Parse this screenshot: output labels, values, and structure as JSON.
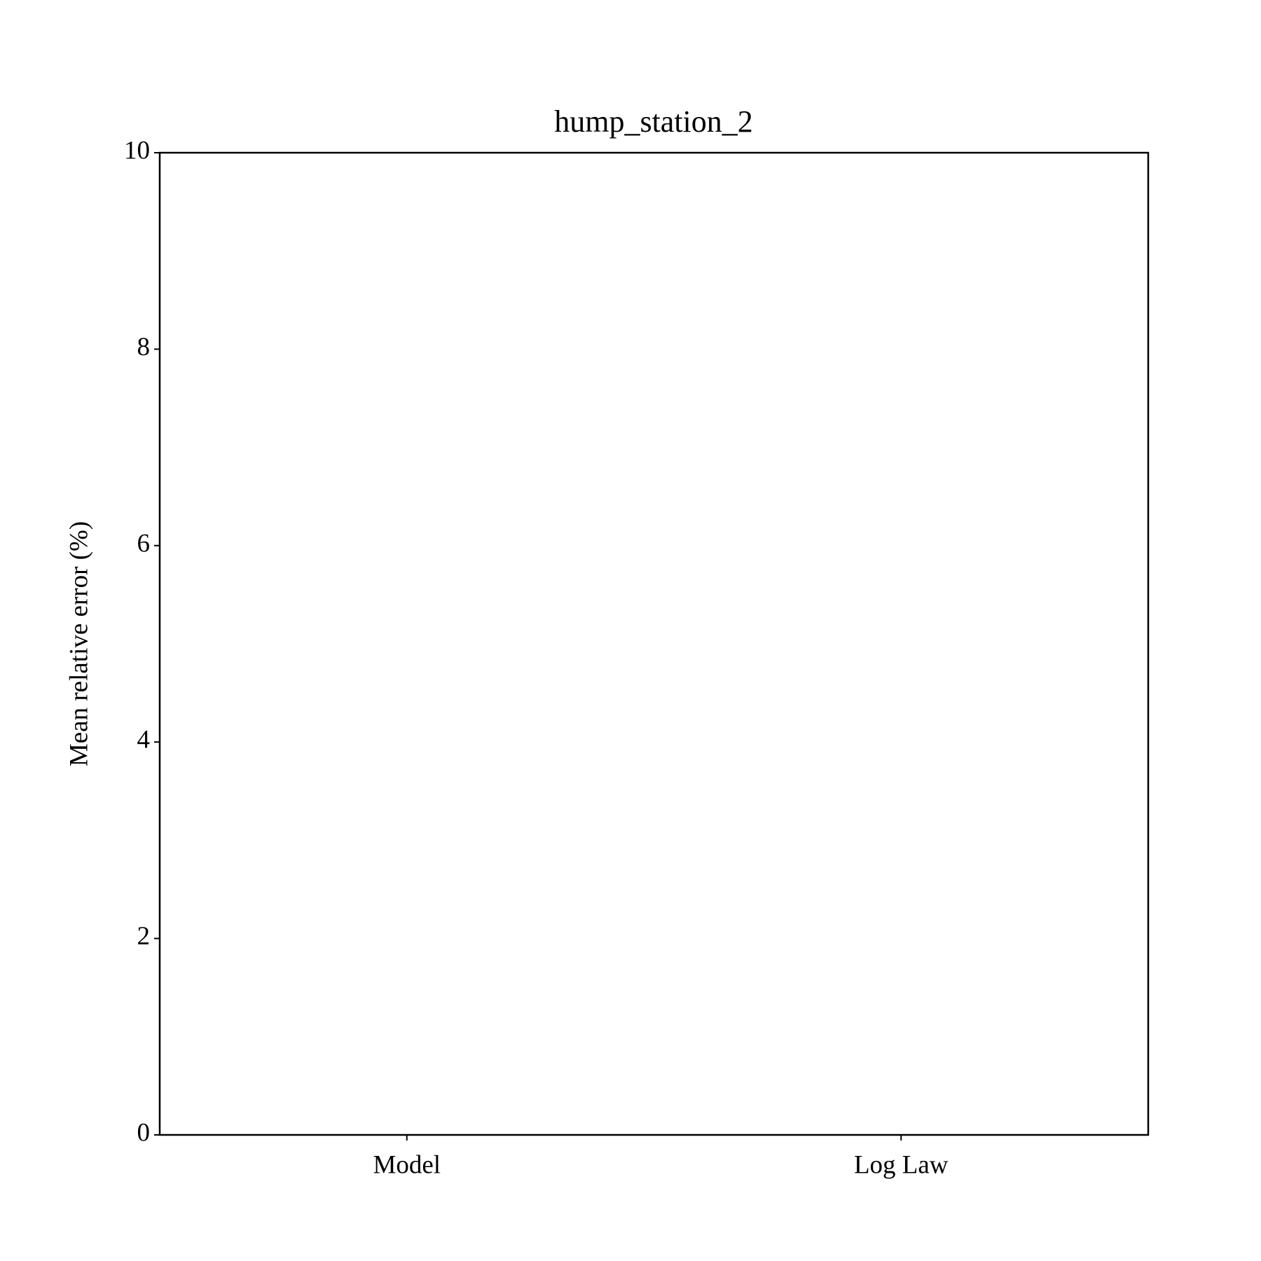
{
  "chart_data": {
    "type": "bar",
    "title": "hump_station_2",
    "ylabel": "Mean relative error (%)",
    "categories": [
      "Model",
      "Log Law"
    ],
    "ylim": [
      0,
      10
    ],
    "yticks": [
      0,
      2,
      4,
      6,
      8,
      10
    ],
    "grid": false
  }
}
